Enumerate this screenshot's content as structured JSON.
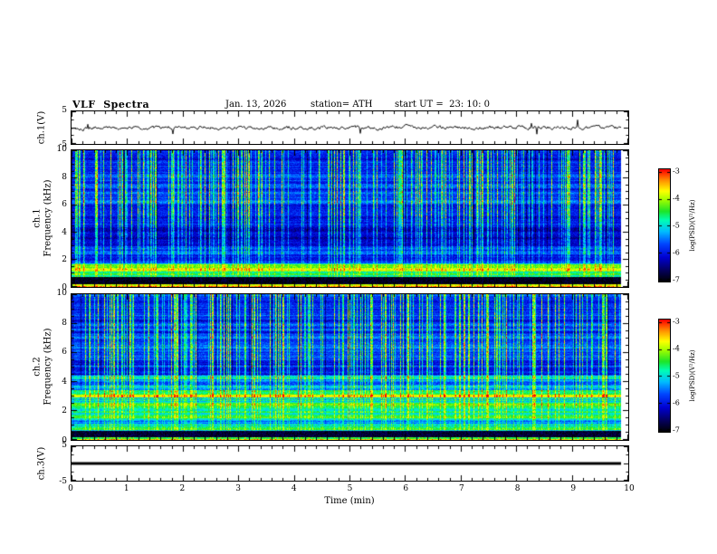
{
  "header": {
    "title": "VLF  Spectra",
    "date": "Jan. 13, 2026",
    "station": "station= ATH",
    "start_ut": "start UT =  23: 10: 0"
  },
  "xaxis": {
    "label": "Time (min)",
    "ticks": [
      "0",
      "1",
      "2",
      "3",
      "4",
      "5",
      "6",
      "7",
      "8",
      "9",
      "10"
    ],
    "range_min": [
      0,
      10
    ]
  },
  "colorbar": {
    "label": "log(PSD)(V²/Hz)",
    "ticks": [
      "-3",
      "-4",
      "-5",
      "-6",
      "-7"
    ],
    "range": [
      -7,
      -3
    ],
    "scale_colors_top_to_bottom": [
      "#ff0000",
      "#ff9900",
      "#ffff00",
      "#00ee00",
      "#00ffff",
      "#0044ff",
      "#0000cc",
      "#000066",
      "#000000"
    ]
  },
  "chart_data": [
    {
      "type": "line",
      "panel": "ch1_waveform",
      "ylabel": "ch.1(V)",
      "ylim": [
        -5,
        5
      ],
      "yticks": [
        "5",
        "-5"
      ],
      "x_range_min": [
        0,
        9.85
      ],
      "mean_v": 0,
      "noise_amplitude_v": 0.9,
      "spike_amplitude_v": 2.5,
      "summary": "Continuous noisy voltage trace on channel 1 fluctuating around 0 V with roughly ±1 V noise and occasional 2-3 V spikes across the full 10-minute record."
    },
    {
      "type": "heatmap",
      "panel": "ch1_spectrogram",
      "ylabel_line1": "ch.1",
      "ylabel_line2": "Frequency (kHz)",
      "ylim": [
        0,
        10
      ],
      "yticks": [
        "0",
        "2",
        "4",
        "6",
        "8",
        "10"
      ],
      "zlim": [
        -7,
        -3
      ],
      "x_range_min": [
        0,
        9.85
      ],
      "bands": [
        {
          "f_lo": 0.0,
          "f_hi": 0.2,
          "psd": -4.0
        },
        {
          "f_lo": 0.2,
          "f_hi": 0.75,
          "psd": -6.9
        },
        {
          "f_lo": 0.75,
          "f_hi": 1.7,
          "psd": -4.6
        },
        {
          "f_lo": 1.7,
          "f_hi": 3.0,
          "psd": -5.6
        },
        {
          "f_lo": 3.0,
          "f_hi": 6.0,
          "psd": -6.1
        },
        {
          "f_lo": 6.0,
          "f_hi": 10.0,
          "psd": -5.8
        }
      ],
      "vertical_streaks": {
        "fraction_of_columns": 0.32,
        "max_psd_boost_decades": 2.1,
        "strongest_above_khz": 5
      },
      "summary": "Blue-background spectrogram with dense bright vertical sferic streaks (strongest above ~5 kHz), darker horizontal banding between 3 and 6 kHz, a bright green-yellow band near 0.8-1.7 kHz and a black band below ~0.75 kHz."
    },
    {
      "type": "heatmap",
      "panel": "ch2_spectrogram",
      "ylabel_line1": "ch.2",
      "ylabel_line2": "Frequency (kHz)",
      "ylim": [
        0,
        10
      ],
      "yticks": [
        "0",
        "2",
        "4",
        "6",
        "8",
        "10"
      ],
      "zlim": [
        -7,
        -3
      ],
      "x_range_min": [
        0,
        9.85
      ],
      "bands": [
        {
          "f_lo": 0.0,
          "f_hi": 0.2,
          "psd": -3.9
        },
        {
          "f_lo": 0.2,
          "f_hi": 0.6,
          "psd": -6.8
        },
        {
          "f_lo": 0.6,
          "f_hi": 2.9,
          "psd": -4.9
        },
        {
          "f_lo": 2.9,
          "f_hi": 3.4,
          "psd": -4.1
        },
        {
          "f_lo": 3.4,
          "f_hi": 4.5,
          "psd": -5.2
        },
        {
          "f_lo": 4.5,
          "f_hi": 5.0,
          "psd": -6.1
        },
        {
          "f_lo": 5.0,
          "f_hi": 10.0,
          "psd": -5.8
        }
      ],
      "vertical_streaks": {
        "fraction_of_columns": 0.32,
        "max_psd_boost_decades": 2.0,
        "strongest_above_khz": 5
      },
      "summary": "Spectrogram with green-yellow horizontal banding below ~3.5 kHz, a bright yellow band near 3 kHz, a darker band near 4.5-5 kHz, blue streaky background above 5 kHz and a black band below ~0.6 kHz."
    },
    {
      "type": "line",
      "panel": "ch3_flat",
      "ylabel": "ch.3(V)",
      "ylim": [
        -5,
        5
      ],
      "yticks": [
        "5",
        "-5"
      ],
      "x_range_min": [
        0,
        9.85
      ],
      "constant_v": 0,
      "summary": "Channel 3 is flat at 0 V for the entire interval (thick solid black line, no signal)."
    }
  ]
}
